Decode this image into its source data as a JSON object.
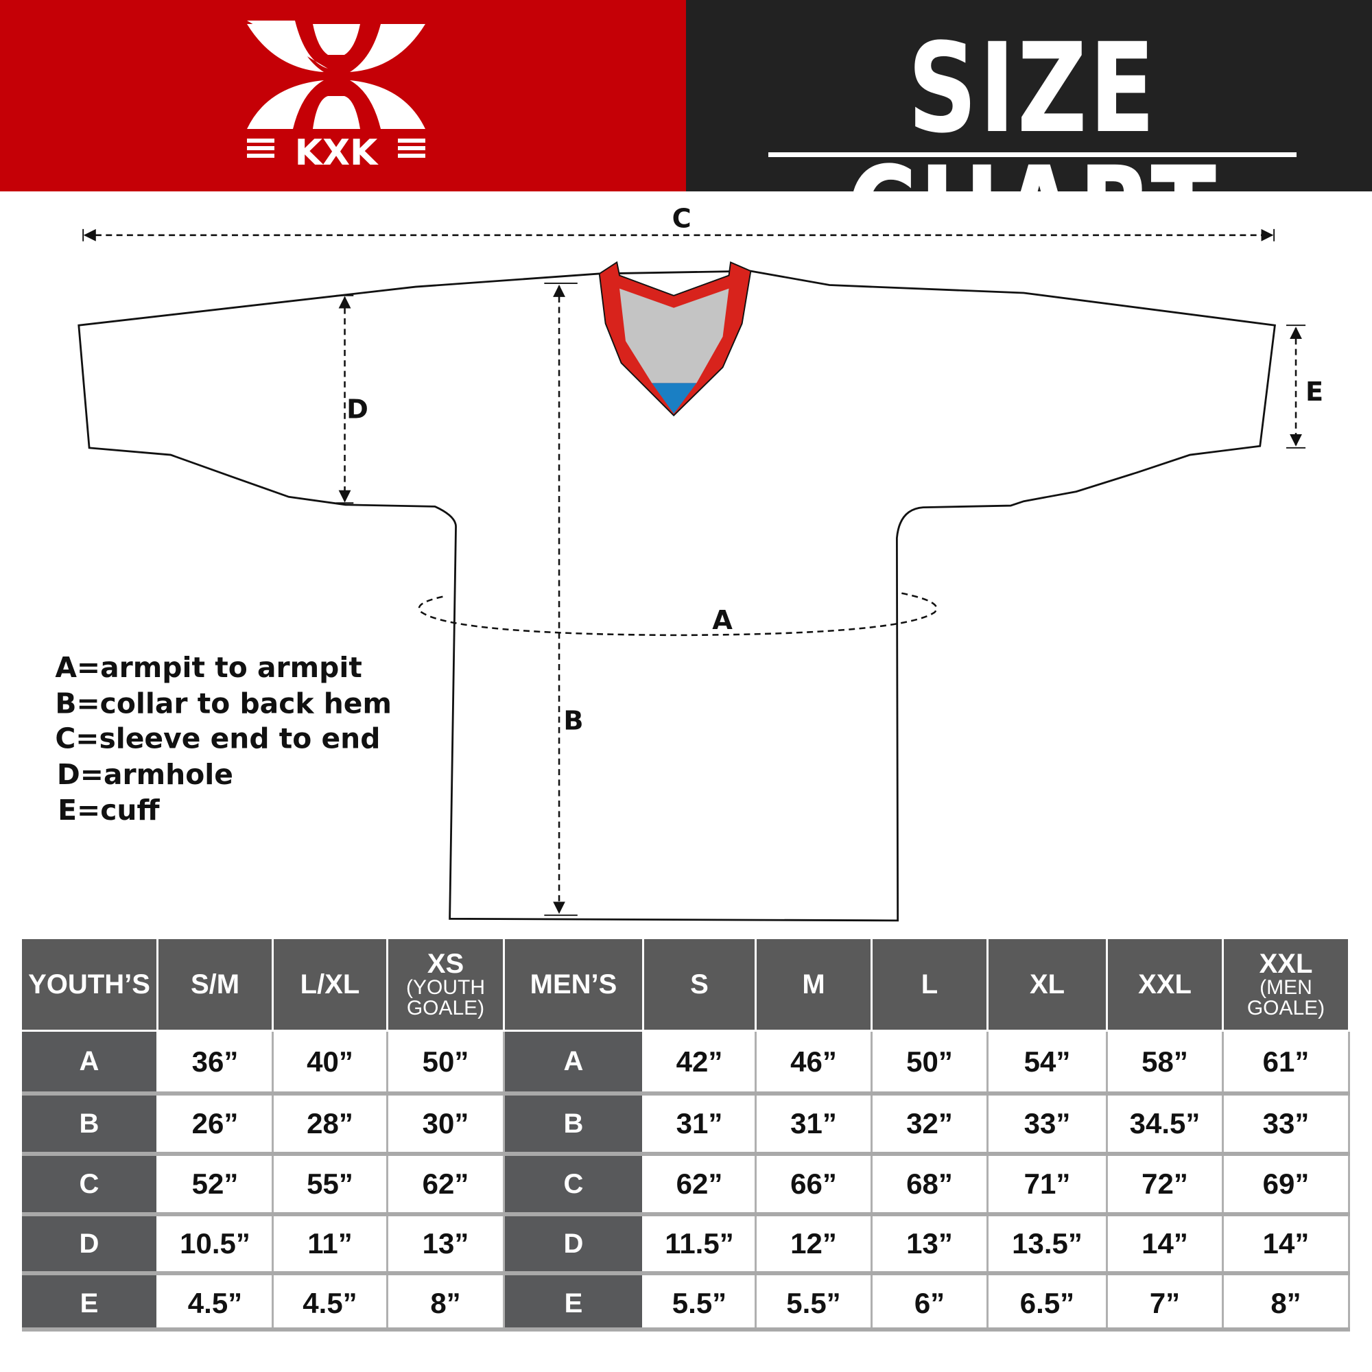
{
  "header": {
    "brand": "KXK",
    "title": "SIZE CHART",
    "colors": {
      "brand_red": "#c50006",
      "dark": "#222222"
    }
  },
  "diagram": {
    "labels": {
      "a": "A",
      "b": "B",
      "c": "C",
      "d": "D",
      "e": "E"
    },
    "legend": [
      "A=armpit to armpit",
      "B=collar to back hem",
      "C=sleeve end to end",
      "D=armhole",
      "E=cuff"
    ],
    "colors": {
      "collar": "#d8231c",
      "collar_inner": "#c4c4c4",
      "collar_tip": "#1a7fc4"
    }
  },
  "table": {
    "headers": [
      {
        "main": "YOUTH’S",
        "sub": ""
      },
      {
        "main": "S/M",
        "sub": ""
      },
      {
        "main": "L/XL",
        "sub": ""
      },
      {
        "main": "XS",
        "sub": "(YOUTH GOALE)"
      },
      {
        "main": "MEN’S",
        "sub": ""
      },
      {
        "main": "S",
        "sub": ""
      },
      {
        "main": "M",
        "sub": ""
      },
      {
        "main": "L",
        "sub": ""
      },
      {
        "main": "XL",
        "sub": ""
      },
      {
        "main": "XXL",
        "sub": ""
      },
      {
        "main": "XXL",
        "sub": "(MEN GOALE)"
      }
    ],
    "rows": [
      {
        "youth_label": "A",
        "youth": [
          "36”",
          "40”",
          "50”"
        ],
        "men_label": "A",
        "men": [
          "42”",
          "46”",
          "50”",
          "54”",
          "58”",
          "61”"
        ]
      },
      {
        "youth_label": "B",
        "youth": [
          "26”",
          "28”",
          "30”"
        ],
        "men_label": "B",
        "men": [
          "31”",
          "31”",
          "32”",
          "33”",
          "34.5”",
          "33”"
        ]
      },
      {
        "youth_label": "C",
        "youth": [
          "52”",
          "55”",
          "62”"
        ],
        "men_label": "C",
        "men": [
          "62”",
          "66”",
          "68”",
          "71”",
          "72”",
          "69”"
        ]
      },
      {
        "youth_label": "D",
        "youth": [
          "10.5”",
          "11”",
          "13”"
        ],
        "men_label": "D",
        "men": [
          "11.5”",
          "12”",
          "13”",
          "13.5”",
          "14”",
          "14”"
        ]
      },
      {
        "youth_label": "E",
        "youth": [
          "4.5”",
          "4.5”",
          "8”"
        ],
        "men_label": "E",
        "men": [
          "5.5”",
          "5.5”",
          "6”",
          "6.5”",
          "7”",
          "8”"
        ]
      }
    ]
  }
}
